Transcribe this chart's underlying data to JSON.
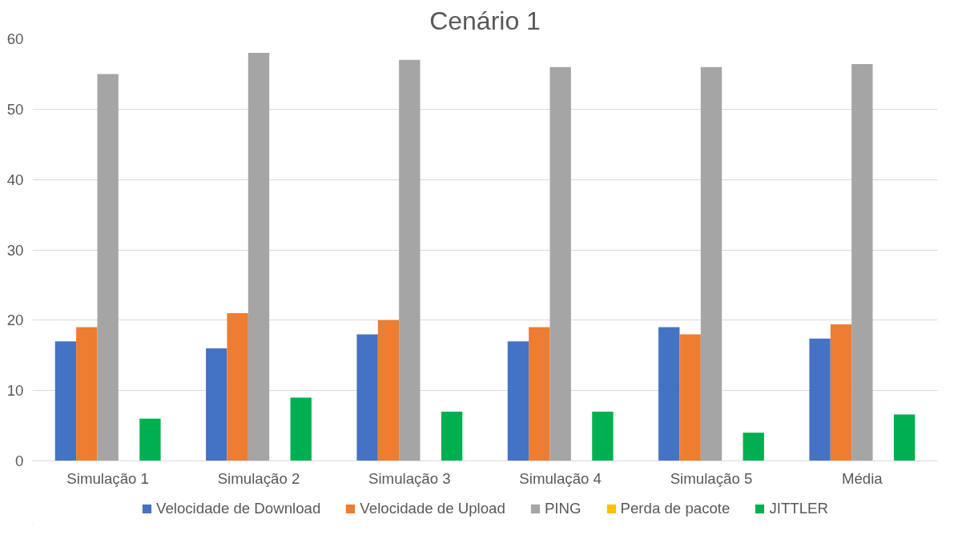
{
  "chart_data": {
    "type": "bar",
    "title": "Cenário 1",
    "categories": [
      "Simulação 1",
      "Simulação 2",
      "Simulação 3",
      "Simulação 4",
      "Simulação 5",
      "Média"
    ],
    "series": [
      {
        "name": "Velocidade de Download",
        "color": "#4472c4",
        "values": [
          17,
          16,
          18,
          17,
          19,
          17.4
        ]
      },
      {
        "name": "Velocidade de Upload",
        "color": "#ed7d31",
        "values": [
          19,
          21,
          20,
          19,
          18,
          19.4
        ]
      },
      {
        "name": "PING",
        "color": "#a5a5a5",
        "values": [
          55,
          58,
          57,
          56,
          56,
          56.4
        ]
      },
      {
        "name": "Perda de pacote",
        "color": "#ffc000",
        "values": [
          0,
          0,
          0,
          0,
          0,
          0
        ]
      },
      {
        "name": "JITTLER",
        "color": "#00b050",
        "values": [
          6,
          9,
          7,
          7,
          4,
          6.6
        ]
      }
    ],
    "ylim": [
      0,
      60
    ],
    "yticks": [
      0,
      10,
      20,
      30,
      40,
      50,
      60
    ],
    "grid": "y",
    "legend": "bottom"
  }
}
